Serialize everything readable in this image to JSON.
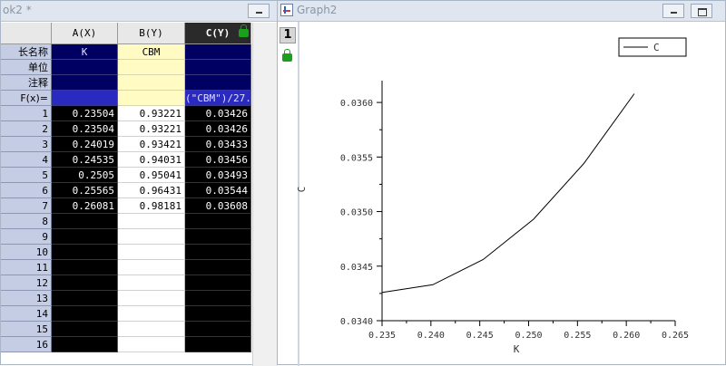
{
  "sheet": {
    "title": "ok2 *",
    "columns": [
      {
        "label": "A(X)"
      },
      {
        "label": "B(Y)"
      },
      {
        "label": "C(Y)"
      }
    ],
    "meta_rows": [
      {
        "label": "长名称",
        "values": [
          "K",
          "CBM",
          ""
        ]
      },
      {
        "label": "单位",
        "values": [
          "",
          "",
          ""
        ]
      },
      {
        "label": "注释",
        "values": [
          "",
          "",
          ""
        ]
      },
      {
        "label": "F(x)=",
        "values": [
          "",
          "",
          "(\"CBM\")/27."
        ]
      }
    ],
    "rows": [
      {
        "n": "1",
        "values": [
          "0.23504",
          "0.93221",
          "0.03426"
        ]
      },
      {
        "n": "2",
        "values": [
          "0.23504",
          "0.93221",
          "0.03426"
        ]
      },
      {
        "n": "3",
        "values": [
          "0.24019",
          "0.93421",
          "0.03433"
        ]
      },
      {
        "n": "4",
        "values": [
          "0.24535",
          "0.94031",
          "0.03456"
        ]
      },
      {
        "n": "5",
        "values": [
          "0.2505",
          "0.95041",
          "0.03493"
        ]
      },
      {
        "n": "6",
        "values": [
          "0.25565",
          "0.96431",
          "0.03544"
        ]
      },
      {
        "n": "7",
        "values": [
          "0.26081",
          "0.98181",
          "0.03608"
        ]
      },
      {
        "n": "8",
        "values": [
          "",
          "",
          ""
        ]
      },
      {
        "n": "9",
        "values": [
          "",
          "",
          ""
        ]
      },
      {
        "n": "10",
        "values": [
          "",
          "",
          ""
        ]
      },
      {
        "n": "11",
        "values": [
          "",
          "",
          ""
        ]
      },
      {
        "n": "12",
        "values": [
          "",
          "",
          ""
        ]
      },
      {
        "n": "13",
        "values": [
          "",
          "",
          ""
        ]
      },
      {
        "n": "14",
        "values": [
          "",
          "",
          ""
        ]
      },
      {
        "n": "15",
        "values": [
          "",
          "",
          ""
        ]
      },
      {
        "n": "16",
        "values": [
          "",
          "",
          ""
        ]
      }
    ]
  },
  "graph": {
    "title": "Graph2",
    "layer_number": "1",
    "icons": {
      "app": "graph-window-icon",
      "lock": "lock-icon",
      "minimize": "minimize-icon",
      "restore": "restore-icon"
    }
  },
  "colors": {
    "selected_blue": "#000063",
    "meta_yellow": "#fffbc3",
    "lock_green": "#1aa01a"
  },
  "chart_data": {
    "type": "line",
    "x": [
      0.23504,
      0.24019,
      0.24535,
      0.2505,
      0.25565,
      0.26081
    ],
    "series": [
      {
        "name": "C",
        "values": [
          0.03426,
          0.03433,
          0.03456,
          0.03493,
          0.03544,
          0.03608
        ]
      }
    ],
    "xlabel": "K",
    "ylabel": "C",
    "xlim": [
      0.235,
      0.265
    ],
    "ylim": [
      0.034,
      0.0362
    ],
    "xticks": [
      "0.235",
      "0.240",
      "0.245",
      "0.250",
      "0.255",
      "0.260",
      "0.265"
    ],
    "yticks": [
      "0.0340",
      "0.0345",
      "0.0350",
      "0.0355",
      "0.0360"
    ],
    "grid": false,
    "legend": "top-right"
  }
}
